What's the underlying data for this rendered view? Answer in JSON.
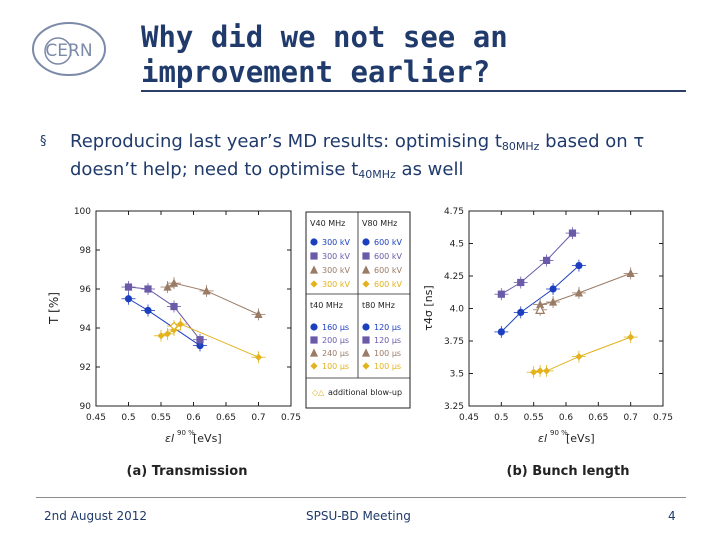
{
  "slide": {
    "title": "Why did we not see an improvement earlier?",
    "bullet_glyph": "§",
    "bullet": {
      "part1": "Reproducing last year’s MD results: optimising t",
      "sub1": "80MHz",
      "part2": " based on τ doesn’t help; need to optimise t",
      "sub2": "40MHz",
      "part3": " as well"
    },
    "logo_text": "CERN"
  },
  "footer": {
    "date": "2nd August 2012",
    "meeting": "SPSU-BD Meeting",
    "page": "4"
  },
  "legend": {
    "header_v40": "V40 MHz",
    "header_v80": "V80 MHz",
    "header_t40": "t40 MHz",
    "header_t80": "t80 MHz",
    "v40": [
      "300 kV",
      "300 kV",
      "300 kV",
      "300 kV"
    ],
    "v80": [
      "600 kV",
      "600 kV",
      "600 kV",
      "600 kV"
    ],
    "t40": [
      "160 μs",
      "200 μs",
      "240 μs",
      "100 μs"
    ],
    "t80": [
      "120 μs",
      "120 μs",
      "100 μs",
      "100 μs"
    ],
    "extra": "additional blow-up"
  },
  "chart_data": [
    {
      "type": "scatter",
      "title": "(a) Transmission",
      "xlabel": "εl90 % [eVs]",
      "ylabel": "T [%]",
      "xlim": [
        0.45,
        0.75
      ],
      "ylim": [
        90,
        100
      ],
      "xticks": [
        "0.45",
        "0.5",
        "0.55",
        "0.6",
        "0.65",
        "0.7",
        "0.75"
      ],
      "yticks": [
        "90",
        "92",
        "94",
        "96",
        "98",
        "100"
      ],
      "series": [
        {
          "name": "160 μs / 120 μs",
          "color": "#1c3fbf",
          "marker": "circle",
          "x": [
            0.5,
            0.53,
            0.61
          ],
          "y": [
            95.5,
            94.9,
            93.1
          ]
        },
        {
          "name": "200 μs / 120 μs",
          "color": "#6a5aa8",
          "marker": "square",
          "x": [
            0.5,
            0.53,
            0.57,
            0.61
          ],
          "y": [
            96.1,
            96.0,
            95.1,
            93.4
          ]
        },
        {
          "name": "240 μs / 100 μs",
          "color": "#9a7b66",
          "marker": "triangle",
          "x": [
            0.56,
            0.57,
            0.62,
            0.7
          ],
          "y": [
            96.1,
            96.3,
            95.9,
            94.7
          ]
        },
        {
          "name": "100 μs / 100 μs",
          "color": "#e3b21c",
          "marker": "diamond",
          "x": [
            0.55,
            0.56,
            0.57,
            0.58,
            0.7
          ],
          "y": [
            93.6,
            93.7,
            93.9,
            94.2,
            92.5
          ]
        },
        {
          "name": "additional blow-up",
          "color": "#e3b21c",
          "marker": "open-diamond",
          "x": [
            0.57
          ],
          "y": [
            94.1
          ]
        }
      ]
    },
    {
      "type": "scatter",
      "title": "(b) Bunch length",
      "xlabel": "εl90 % [eVs]",
      "ylabel": "τ4σ [ns]",
      "xlim": [
        0.45,
        0.75
      ],
      "ylim": [
        3.25,
        4.75
      ],
      "xticks": [
        "0.45",
        "0.5",
        "0.55",
        "0.6",
        "0.65",
        "0.7",
        "0.75"
      ],
      "yticks": [
        "3.25",
        "3.5",
        "3.75",
        "4.0",
        "4.25",
        "4.5",
        "4.75"
      ],
      "series": [
        {
          "name": "160 μs / 120 μs",
          "color": "#1c3fbf",
          "marker": "circle",
          "x": [
            0.5,
            0.53,
            0.58,
            0.62
          ],
          "y": [
            3.82,
            3.97,
            4.15,
            4.33
          ]
        },
        {
          "name": "200 μs / 120 μs",
          "color": "#6a5aa8",
          "marker": "square",
          "x": [
            0.5,
            0.53,
            0.57,
            0.61
          ],
          "y": [
            4.11,
            4.2,
            4.37,
            4.58
          ]
        },
        {
          "name": "240 μs / 100 μs",
          "color": "#9a7b66",
          "marker": "triangle",
          "x": [
            0.56,
            0.58,
            0.62,
            0.7
          ],
          "y": [
            4.03,
            4.05,
            4.12,
            4.27
          ]
        },
        {
          "name": "100 μs / 100 μs",
          "color": "#e3b21c",
          "marker": "diamond",
          "x": [
            0.55,
            0.56,
            0.57,
            0.62,
            0.7
          ],
          "y": [
            3.51,
            3.52,
            3.52,
            3.63,
            3.78
          ]
        },
        {
          "name": "additional blow-up",
          "color": "#9a7b66",
          "marker": "open-triangle",
          "x": [
            0.56
          ],
          "y": [
            3.99
          ]
        }
      ]
    }
  ]
}
